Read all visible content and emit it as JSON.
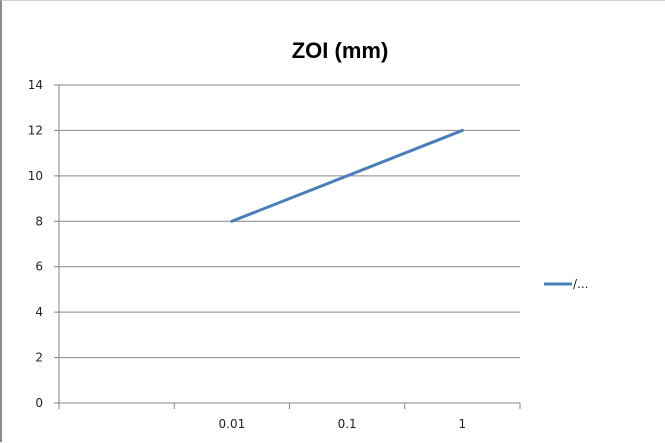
{
  "chart_data": {
    "type": "line",
    "title": "ZOI  (mm)",
    "xlabel": "",
    "ylabel": "",
    "x_scale": "log",
    "categories": [
      "",
      "0.01",
      "0.1",
      "1"
    ],
    "series": [
      {
        "name": "/...",
        "x": [
          "0.01",
          "0.1",
          "1"
        ],
        "values": [
          8,
          10,
          12
        ],
        "color": "#4a7ebb"
      }
    ],
    "ylim": [
      0,
      14
    ],
    "yticks": [
      0,
      2,
      4,
      6,
      8,
      10,
      12,
      14
    ],
    "grid": "horizontal",
    "legend_position": "right"
  }
}
